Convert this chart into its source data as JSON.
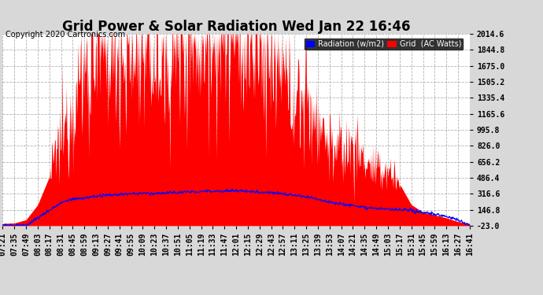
{
  "title": "Grid Power & Solar Radiation Wed Jan 22 16:46",
  "copyright": "Copyright 2020 Cartronics.com",
  "background_color": "#d8d8d8",
  "plot_bg_color": "#ffffff",
  "grid_color": "#aaaaaa",
  "yticks": [
    2014.6,
    1844.8,
    1675.0,
    1505.2,
    1335.4,
    1165.6,
    995.8,
    826.0,
    656.2,
    486.4,
    316.6,
    146.8,
    -23.0
  ],
  "ymin": -23.0,
  "ymax": 2014.6,
  "radiation_color": "#ff0000",
  "grid_line_color": "#0000ff",
  "legend_radiation_bg": "#0000ff",
  "legend_grid_bg": "#ff0000",
  "legend_radiation_label": "Radiation (w/m2)",
  "legend_grid_label": "Grid  (AC Watts)",
  "title_fontsize": 12,
  "copyright_fontsize": 7,
  "tick_fontsize": 7,
  "xtick_labels": [
    "07:21",
    "07:35",
    "07:49",
    "08:03",
    "08:17",
    "08:31",
    "08:45",
    "08:59",
    "09:13",
    "09:27",
    "09:41",
    "09:55",
    "10:09",
    "10:23",
    "10:37",
    "10:51",
    "11:05",
    "11:19",
    "11:33",
    "11:47",
    "12:01",
    "12:15",
    "12:29",
    "12:43",
    "12:57",
    "13:11",
    "13:25",
    "13:39",
    "13:53",
    "14:07",
    "14:21",
    "14:35",
    "14:49",
    "15:03",
    "15:17",
    "15:31",
    "15:45",
    "15:59",
    "16:13",
    "16:27",
    "16:41"
  ],
  "radiation_coarse": [
    0,
    5,
    40,
    200,
    500,
    900,
    1300,
    1580,
    1850,
    1700,
    1820,
    1650,
    1900,
    1750,
    1600,
    1920,
    2050,
    1950,
    2000,
    1980,
    1960,
    1850,
    1880,
    1750,
    1500,
    1350,
    1280,
    1100,
    850,
    750,
    820,
    680,
    520,
    580,
    420,
    200,
    120,
    90,
    60,
    20,
    0
  ],
  "grid_coarse": [
    -20,
    -20,
    -20,
    60,
    140,
    220,
    260,
    270,
    290,
    300,
    310,
    315,
    320,
    320,
    325,
    330,
    335,
    340,
    345,
    345,
    350,
    340,
    335,
    330,
    315,
    300,
    280,
    260,
    230,
    210,
    190,
    175,
    160,
    150,
    145,
    135,
    120,
    100,
    75,
    40,
    -20
  ]
}
